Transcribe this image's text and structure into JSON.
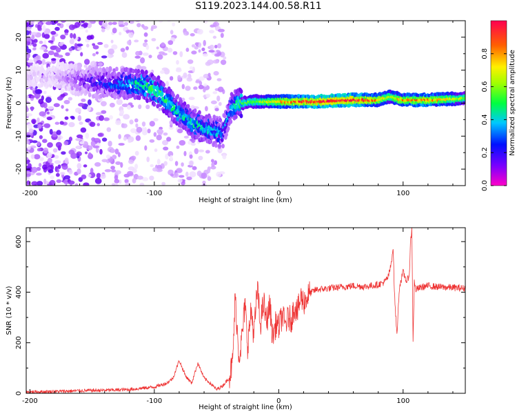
{
  "figure": {
    "title": "S119.2023.144.00.58.R11"
  },
  "chart_data": [
    {
      "type": "heatmap",
      "xlabel": "Height of straight line (km)",
      "ylabel": "Frequency (Hz)",
      "xlim": [
        -203,
        150
      ],
      "ylim": [
        -25,
        25
      ],
      "xticks": [
        -200,
        -100,
        0,
        100
      ],
      "yticks": [
        -20,
        -10,
        0,
        10,
        20
      ],
      "grid": false,
      "colorbar": {
        "label": "Normalized spectral amplitude",
        "range": [
          0,
          1
        ],
        "ticks": [
          0.0,
          0.2,
          0.4,
          0.6,
          0.8
        ],
        "tick_labels": [
          "0.0",
          "0.2",
          "0.4",
          "0.6",
          "0.8"
        ],
        "colormap": "gist_rainbow (white at 0)"
      },
      "ridge": {
        "x": [
          -180,
          -160,
          -140,
          -120,
          -105,
          -95,
          -85,
          -70,
          -55,
          -45,
          -38,
          -30,
          -20,
          0,
          30,
          60,
          80,
          90,
          100,
          120,
          150
        ],
        "frequency_hz": [
          8,
          7,
          6,
          6,
          5,
          3,
          -1,
          -6,
          -8,
          -9,
          -1,
          0,
          0.5,
          0.5,
          0.5,
          1,
          1,
          2,
          1,
          1,
          1.5
        ],
        "peak_amplitude": [
          0.05,
          0.15,
          0.25,
          0.35,
          0.45,
          0.45,
          0.4,
          0.4,
          0.35,
          0.3,
          0.35,
          0.5,
          0.55,
          0.7,
          0.95,
          0.95,
          0.75,
          0.6,
          0.75,
          0.8,
          0.55
        ]
      }
    },
    {
      "type": "line",
      "xlabel": "Height of straight line (km)",
      "ylabel": "SNR (10 * v/v)",
      "xlim": [
        -203,
        150
      ],
      "ylim": [
        0,
        655
      ],
      "xticks": [
        -200,
        -100,
        0,
        100
      ],
      "yticks": [
        0,
        200,
        400,
        600
      ],
      "grid": false,
      "series": [
        {
          "color": "#ee3333",
          "x": [
            -203,
            -180,
            -160,
            -140,
            -120,
            -110,
            -100,
            -90,
            -85,
            -80,
            -75,
            -70,
            -65,
            -60,
            -55,
            -50,
            -45,
            -40,
            -37,
            -35,
            -32,
            -30,
            -27,
            -25,
            -22,
            -20,
            -17,
            -15,
            -12,
            -10,
            -7,
            -5,
            -2,
            0,
            3,
            5,
            8,
            10,
            13,
            15,
            18,
            20,
            25,
            30,
            40,
            50,
            60,
            70,
            80,
            85,
            88,
            90,
            92,
            93,
            95,
            97,
            100,
            103,
            105,
            106,
            107,
            108,
            109,
            110,
            115,
            120,
            130,
            140,
            150
          ],
          "values": [
            5,
            7,
            10,
            12,
            15,
            20,
            25,
            40,
            60,
            130,
            70,
            40,
            120,
            60,
            40,
            15,
            30,
            60,
            120,
            380,
            150,
            200,
            350,
            190,
            330,
            230,
            420,
            270,
            360,
            280,
            350,
            220,
            280,
            260,
            310,
            270,
            300,
            290,
            350,
            320,
            380,
            360,
            395,
            410,
            415,
            420,
            425,
            422,
            430,
            440,
            460,
            500,
            580,
            400,
            230,
            420,
            480,
            440,
            470,
            600,
            650,
            210,
            440,
            410,
            420,
            425,
            420,
            418,
            415
          ]
        }
      ]
    }
  ]
}
